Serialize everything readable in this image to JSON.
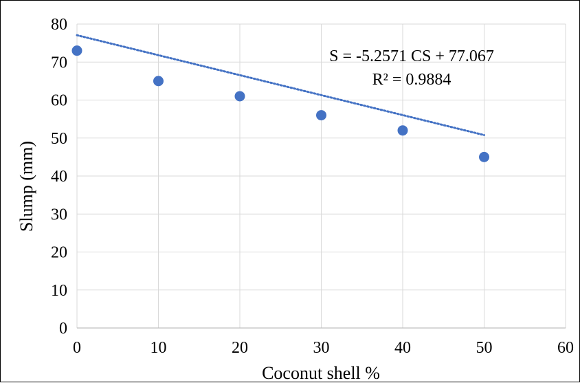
{
  "chart_data": {
    "type": "scatter",
    "title": "",
    "xlabel": "Coconut shell %",
    "ylabel": "Slump (mm)",
    "xlim": [
      0,
      60
    ],
    "ylim": [
      0,
      80
    ],
    "x_ticks": [
      0,
      10,
      20,
      30,
      40,
      50,
      60
    ],
    "y_ticks": [
      0,
      10,
      20,
      30,
      40,
      50,
      60,
      70,
      80
    ],
    "grid": true,
    "series": [
      {
        "x": [
          0,
          10,
          20,
          30,
          40,
          50
        ],
        "y": [
          73,
          65,
          61,
          56,
          52,
          45
        ],
        "color": "#4472C4"
      }
    ],
    "trendline": {
      "type": "linear",
      "slope": -5.2571,
      "intercept": 77.067,
      "style": "dotted",
      "color": "#4472C4",
      "x_range": [
        0,
        50
      ]
    },
    "annotations": [
      "S = -5.2571 CS + 77.067",
      "R² = 0.9884"
    ]
  }
}
